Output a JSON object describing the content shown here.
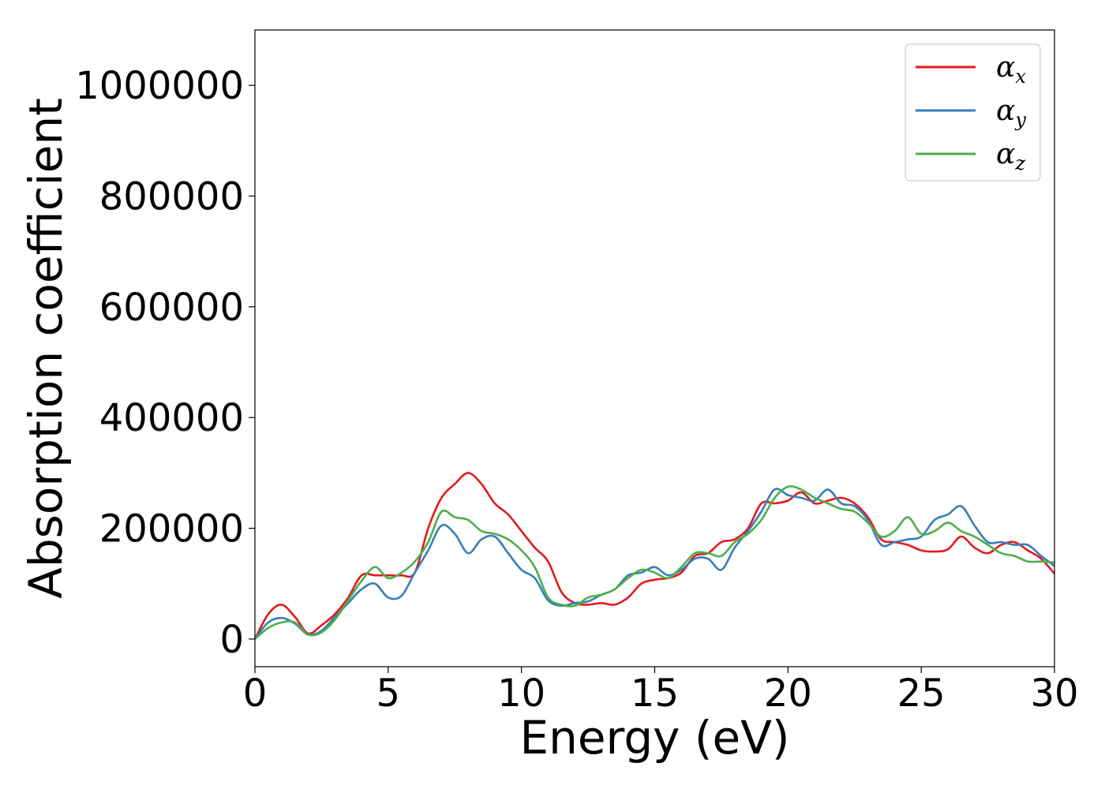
{
  "chart_data": {
    "type": "line",
    "title": "",
    "xlabel": "Energy (eV)",
    "ylabel": "Absorption coefficient",
    "xlim": [
      0,
      30
    ],
    "ylim": [
      -50000,
      1100000
    ],
    "xticks": [
      0,
      5,
      10,
      15,
      20,
      25,
      30
    ],
    "yticks": [
      0,
      200000,
      400000,
      600000,
      800000,
      1000000
    ],
    "xtick_labels": [
      "0",
      "5",
      "10",
      "15",
      "20",
      "25",
      "30"
    ],
    "ytick_labels": [
      "0",
      "200000",
      "400000",
      "600000",
      "800000",
      "1000000"
    ],
    "grid": false,
    "legend_position": "top-right",
    "x": [
      0,
      0.5,
      1,
      1.5,
      2,
      2.5,
      3,
      3.5,
      4,
      4.5,
      5,
      5.5,
      6,
      6.5,
      7,
      7.5,
      8,
      8.5,
      9,
      9.5,
      10,
      10.5,
      11,
      11.5,
      12,
      12.5,
      13,
      13.5,
      14,
      14.5,
      15,
      15.5,
      16,
      16.5,
      17,
      17.5,
      18,
      18.5,
      19,
      19.5,
      20,
      20.5,
      21,
      21.5,
      22,
      22.5,
      23,
      23.5,
      24,
      24.5,
      25,
      25.5,
      26,
      26.5,
      27,
      27.5,
      28,
      28.5,
      29,
      29.5,
      30
    ],
    "series": [
      {
        "name": "α",
        "subscript": "x",
        "color": "#e41a1c",
        "values": [
          0,
          45000,
          62000,
          40000,
          10000,
          25000,
          45000,
          75000,
          115000,
          115000,
          115000,
          115000,
          120000,
          200000,
          255000,
          280000,
          300000,
          280000,
          245000,
          225000,
          195000,
          165000,
          140000,
          85000,
          65000,
          62000,
          65000,
          62000,
          75000,
          100000,
          107000,
          110000,
          120000,
          150000,
          155000,
          175000,
          180000,
          200000,
          245000,
          245000,
          250000,
          265000,
          245000,
          250000,
          255000,
          245000,
          220000,
          180000,
          175000,
          170000,
          160000,
          158000,
          162000,
          185000,
          165000,
          155000,
          170000,
          175000,
          160000,
          145000,
          118000
        ]
      },
      {
        "name": "α",
        "subscript": "y",
        "color": "#377eb8",
        "values": [
          0,
          30000,
          38000,
          28000,
          8000,
          15000,
          40000,
          65000,
          90000,
          100000,
          75000,
          78000,
          120000,
          160000,
          205000,
          190000,
          155000,
          180000,
          185000,
          155000,
          125000,
          110000,
          70000,
          60000,
          65000,
          68000,
          80000,
          90000,
          115000,
          120000,
          130000,
          115000,
          125000,
          145000,
          145000,
          125000,
          165000,
          195000,
          230000,
          270000,
          260000,
          255000,
          250000,
          270000,
          245000,
          240000,
          215000,
          170000,
          175000,
          180000,
          185000,
          215000,
          225000,
          240000,
          205000,
          175000,
          175000,
          170000,
          170000,
          150000,
          132000
        ]
      },
      {
        "name": "α",
        "subscript": "z",
        "color": "#4daf4a",
        "values": [
          0,
          20000,
          30000,
          30000,
          8000,
          12000,
          35000,
          70000,
          105000,
          130000,
          110000,
          120000,
          140000,
          175000,
          230000,
          220000,
          215000,
          195000,
          190000,
          180000,
          160000,
          130000,
          75000,
          62000,
          60000,
          75000,
          80000,
          90000,
          110000,
          125000,
          120000,
          110000,
          130000,
          155000,
          155000,
          150000,
          175000,
          190000,
          215000,
          255000,
          275000,
          270000,
          255000,
          245000,
          235000,
          230000,
          210000,
          185000,
          195000,
          220000,
          190000,
          195000,
          210000,
          195000,
          185000,
          170000,
          155000,
          150000,
          140000,
          140000,
          138000
        ]
      }
    ]
  }
}
